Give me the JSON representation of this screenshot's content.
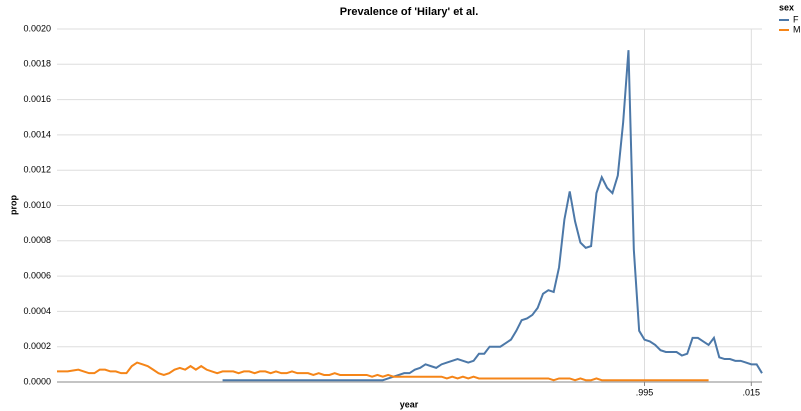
{
  "chart_data": {
    "type": "line",
    "title": "Prevalence of 'Hilary' et al.",
    "x_label": "year",
    "y_label": "prop",
    "legend_title": "sex",
    "legend": "top-right",
    "grid": true,
    "x": [
      1885,
      1886,
      1887,
      1888,
      1889,
      1890,
      1891,
      1892,
      1893,
      1894,
      1895,
      1896,
      1897,
      1898,
      1899,
      1900,
      1901,
      1902,
      1903,
      1904,
      1905,
      1906,
      1907,
      1908,
      1909,
      1910,
      1911,
      1912,
      1913,
      1914,
      1915,
      1916,
      1917,
      1918,
      1919,
      1920,
      1921,
      1922,
      1923,
      1924,
      1925,
      1926,
      1927,
      1928,
      1929,
      1930,
      1931,
      1932,
      1933,
      1934,
      1935,
      1936,
      1937,
      1938,
      1939,
      1940,
      1941,
      1942,
      1943,
      1944,
      1945,
      1946,
      1947,
      1948,
      1949,
      1950,
      1951,
      1952,
      1953,
      1954,
      1955,
      1956,
      1957,
      1958,
      1959,
      1960,
      1961,
      1962,
      1963,
      1964,
      1965,
      1966,
      1967,
      1968,
      1969,
      1970,
      1971,
      1972,
      1973,
      1974,
      1975,
      1976,
      1977,
      1978,
      1979,
      1980,
      1981,
      1982,
      1983,
      1984,
      1985,
      1986,
      1987,
      1988,
      1989,
      1990,
      1991,
      1992,
      1993,
      1994,
      1995,
      1996,
      1997,
      1998,
      1999,
      2000,
      2001,
      2002,
      2003,
      2004,
      2005,
      2006,
      2007,
      2008,
      2009,
      2010,
      2011,
      2012,
      2013,
      2014,
      2015,
      2016,
      2017
    ],
    "series": [
      {
        "name": "F",
        "color": "#4c78a8",
        "values": [
          null,
          null,
          null,
          null,
          null,
          null,
          null,
          null,
          null,
          null,
          null,
          null,
          null,
          null,
          null,
          null,
          null,
          null,
          null,
          null,
          null,
          null,
          null,
          null,
          null,
          null,
          null,
          null,
          null,
          null,
          null,
          1e-05,
          1e-05,
          1e-05,
          1e-05,
          1e-05,
          1e-05,
          1e-05,
          1e-05,
          1e-05,
          1e-05,
          1e-05,
          1e-05,
          1e-05,
          1e-05,
          1e-05,
          1e-05,
          1e-05,
          1e-05,
          1e-05,
          1e-05,
          1e-05,
          1e-05,
          1e-05,
          1e-05,
          1e-05,
          1e-05,
          1e-05,
          1e-05,
          1e-05,
          1e-05,
          1e-05,
          2e-05,
          3e-05,
          4e-05,
          5e-05,
          5e-05,
          7e-05,
          8e-05,
          0.0001,
          9e-05,
          8e-05,
          0.0001,
          0.00011,
          0.00012,
          0.00013,
          0.00012,
          0.00011,
          0.00012,
          0.00016,
          0.00016,
          0.0002,
          0.0002,
          0.0002,
          0.00022,
          0.00024,
          0.00029,
          0.00035,
          0.00036,
          0.00038,
          0.00042,
          0.0005,
          0.00052,
          0.00051,
          0.00065,
          0.00092,
          0.00108,
          0.00091,
          0.00079,
          0.00076,
          0.00077,
          0.00107,
          0.00116,
          0.0011,
          0.00107,
          0.00117,
          0.00147,
          0.00188,
          0.00075,
          0.00029,
          0.00024,
          0.00023,
          0.00021,
          0.00018,
          0.00017,
          0.00017,
          0.00017,
          0.00015,
          0.00016,
          0.00025,
          0.00025,
          0.00023,
          0.00021,
          0.00025,
          0.00014,
          0.00013,
          0.00013,
          0.00012,
          0.00012,
          0.00011,
          0.0001,
          0.0001,
          5e-05
        ]
      },
      {
        "name": "M",
        "color": "#f58518",
        "values": [
          6e-05,
          6e-05,
          6e-05,
          6.5e-05,
          7e-05,
          6e-05,
          5e-05,
          5e-05,
          7e-05,
          7e-05,
          6e-05,
          6e-05,
          5e-05,
          5e-05,
          9e-05,
          0.00011,
          0.0001,
          9e-05,
          7e-05,
          5e-05,
          4e-05,
          5e-05,
          7e-05,
          8e-05,
          7e-05,
          9e-05,
          7e-05,
          9e-05,
          7e-05,
          6e-05,
          5e-05,
          6e-05,
          6e-05,
          6e-05,
          5e-05,
          6e-05,
          6e-05,
          5e-05,
          6e-05,
          6e-05,
          5e-05,
          6e-05,
          5e-05,
          5e-05,
          6e-05,
          5e-05,
          5e-05,
          5e-05,
          4e-05,
          5e-05,
          4e-05,
          4e-05,
          5e-05,
          4e-05,
          4e-05,
          4e-05,
          4e-05,
          4e-05,
          4e-05,
          3e-05,
          4e-05,
          3e-05,
          4e-05,
          3e-05,
          3e-05,
          3e-05,
          3e-05,
          3e-05,
          3e-05,
          3e-05,
          3e-05,
          3e-05,
          3e-05,
          2e-05,
          3e-05,
          2e-05,
          3e-05,
          2e-05,
          3e-05,
          2e-05,
          2e-05,
          2e-05,
          2e-05,
          2e-05,
          2e-05,
          2e-05,
          2e-05,
          2e-05,
          2e-05,
          2e-05,
          2e-05,
          2e-05,
          2e-05,
          1e-05,
          2e-05,
          2e-05,
          2e-05,
          1e-05,
          2e-05,
          1e-05,
          1e-05,
          2e-05,
          1e-05,
          1e-05,
          1e-05,
          1e-05,
          1e-05,
          1e-05,
          1e-05,
          1e-05,
          1e-05,
          1e-05,
          1e-05,
          1e-05,
          1e-05,
          1e-05,
          1e-05,
          1e-05,
          1e-05,
          1e-05,
          1e-05,
          1e-05,
          1e-05,
          null,
          null,
          null,
          null,
          null,
          null,
          null,
          null,
          null,
          null
        ]
      }
    ],
    "xlim": [
      1885,
      2017
    ],
    "ylim": [
      0,
      0.002
    ],
    "xticks": [
      {
        "value": 1995,
        "label": ".995"
      },
      {
        "value": 2015,
        "label": ".015"
      }
    ],
    "yticks": [
      {
        "value": 0,
        "label": "0.0000"
      },
      {
        "value": 0.0002,
        "label": "0.0002"
      },
      {
        "value": 0.0004,
        "label": "0.0004"
      },
      {
        "value": 0.0006,
        "label": "0.0006"
      },
      {
        "value": 0.0008,
        "label": "0.0008"
      },
      {
        "value": 0.001,
        "label": "0.0010"
      },
      {
        "value": 0.0012,
        "label": "0.0012"
      },
      {
        "value": 0.0014,
        "label": "0.0014"
      },
      {
        "value": 0.0016,
        "label": "0.0016"
      },
      {
        "value": 0.0018,
        "label": "0.0018"
      },
      {
        "value": 0.002,
        "label": "0.0020"
      }
    ]
  }
}
